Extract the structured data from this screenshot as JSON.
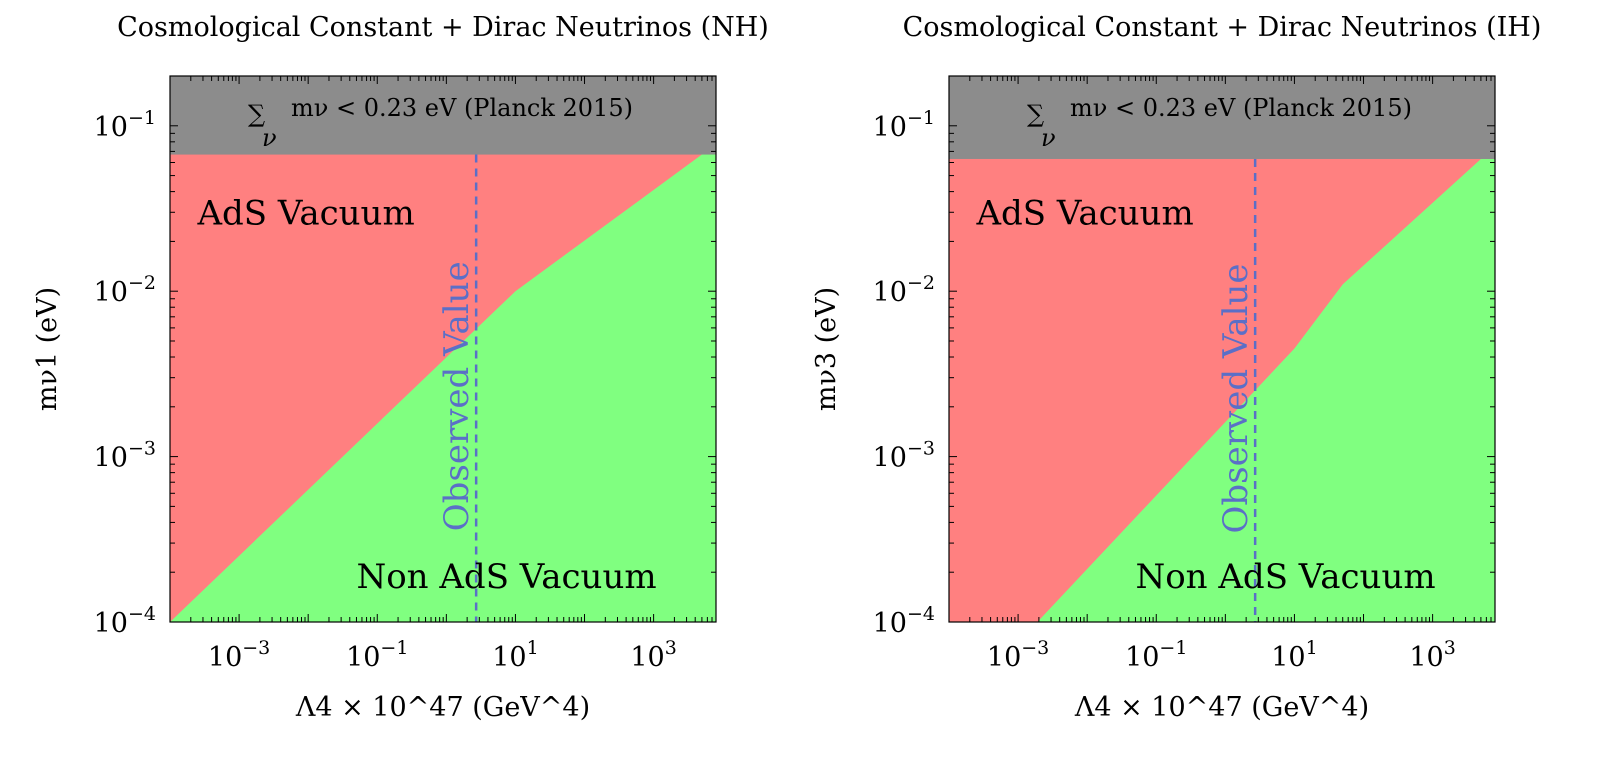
{
  "colors": {
    "ads_region": "#ff8080",
    "non_ads_region": "#80ff80",
    "planck_band": "#8c8c8c",
    "observed_line": "#5b6fc7",
    "frame": "#000000"
  },
  "chart_data": [
    {
      "id": "nh",
      "type": "area",
      "title": "Cosmological Constant + Dirac Neutrinos (NH)",
      "xlabel": "Λ4 × 10^47 (GeV^4)",
      "ylabel": "mν1 (eV)",
      "xscale": "log",
      "yscale": "log",
      "xlim": [
        0.0001,
        8000
      ],
      "ylim": [
        0.0001,
        0.2
      ],
      "x_ticks": [
        {
          "value": 0.001,
          "base": "10",
          "exp": "−3"
        },
        {
          "value": 0.1,
          "base": "10",
          "exp": "−1"
        },
        {
          "value": 10,
          "base": "10",
          "exp": "1"
        },
        {
          "value": 1000,
          "base": "10",
          "exp": "3"
        }
      ],
      "y_ticks": [
        {
          "value": 0.0001,
          "base": "10",
          "exp": "−4"
        },
        {
          "value": 0.001,
          "base": "10",
          "exp": "−3"
        },
        {
          "value": 0.01,
          "base": "10",
          "exp": "−2"
        },
        {
          "value": 0.1,
          "base": "10",
          "exp": "−1"
        }
      ],
      "planck_bound": 0.067,
      "planck_label": "∑ mν < 0.23 eV (Planck 2015)",
      "planck_label_sum": "∑",
      "planck_label_sub": "ν",
      "planck_label_rest": "mν < 0.23 eV (Planck 2015)",
      "boundary": [
        [
          0.0001,
          0.0001
        ],
        [
          10,
          0.01
        ],
        [
          5000,
          0.067
        ]
      ],
      "observed_value_x": 2.7,
      "observed_label": "Observed Value",
      "region_labels": {
        "ads": "AdS Vacuum",
        "non_ads": "Non AdS Vacuum"
      },
      "ads_label_pos": [
        0.00025,
        0.03
      ],
      "non_ads_label_pos": [
        0.05,
        0.00019
      ]
    },
    {
      "id": "ih",
      "type": "area",
      "title": "Cosmological Constant + Dirac Neutrinos (IH)",
      "xlabel": "Λ4 × 10^47 (GeV^4)",
      "ylabel": "mν3 (eV)",
      "xscale": "log",
      "yscale": "log",
      "xlim": [
        0.0001,
        8000
      ],
      "ylim": [
        0.0001,
        0.2
      ],
      "x_ticks": [
        {
          "value": 0.001,
          "base": "10",
          "exp": "−3"
        },
        {
          "value": 0.1,
          "base": "10",
          "exp": "−1"
        },
        {
          "value": 10,
          "base": "10",
          "exp": "1"
        },
        {
          "value": 1000,
          "base": "10",
          "exp": "3"
        }
      ],
      "y_ticks": [
        {
          "value": 0.0001,
          "base": "10",
          "exp": "−4"
        },
        {
          "value": 0.001,
          "base": "10",
          "exp": "−3"
        },
        {
          "value": 0.01,
          "base": "10",
          "exp": "−2"
        },
        {
          "value": 0.1,
          "base": "10",
          "exp": "−1"
        }
      ],
      "planck_bound": 0.063,
      "planck_label": "∑ mν < 0.23 eV (Planck 2015)",
      "planck_label_sum": "∑",
      "planck_label_sub": "ν",
      "planck_label_rest": "mν < 0.23 eV (Planck 2015)",
      "boundary": [
        [
          0.0019,
          0.0001
        ],
        [
          10,
          0.0045
        ],
        [
          50,
          0.011
        ],
        [
          5000,
          0.063
        ]
      ],
      "observed_value_x": 2.7,
      "observed_label": "Observed Value",
      "region_labels": {
        "ads": "AdS Vacuum",
        "non_ads": "Non AdS Vacuum"
      },
      "ads_label_pos": [
        0.00025,
        0.03
      ],
      "non_ads_label_pos": [
        0.05,
        0.00019
      ]
    }
  ]
}
